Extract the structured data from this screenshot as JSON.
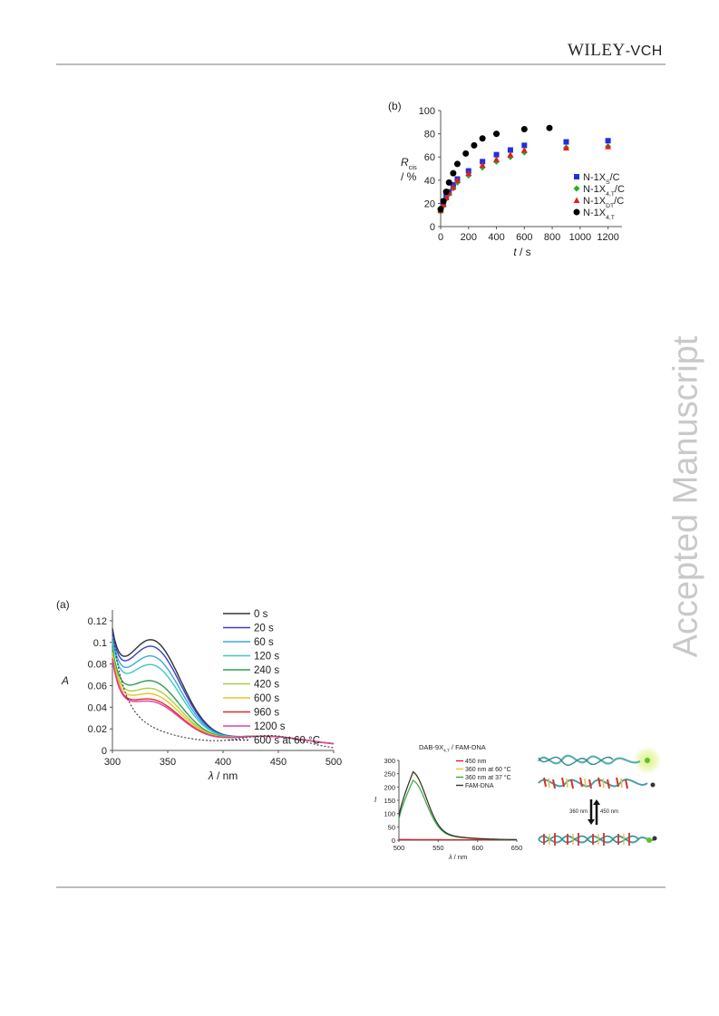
{
  "header": {
    "publisher_main": "WILEY",
    "publisher_suffix": "-VCH"
  },
  "watermark": "Accepted Manuscript",
  "chart_data": [
    {
      "type": "scatter",
      "panel_label": "(b)",
      "ylabel_symbol": "R",
      "ylabel_sub": "cis",
      "ylabel_unit": "/ %",
      "xlabel_symbol": "t",
      "xlabel_unit": " / s",
      "xlim": [
        0,
        1300
      ],
      "ylim": [
        0,
        100
      ],
      "x_ticks": [
        "0",
        "200",
        "400",
        "600",
        "800",
        "1000",
        "1200"
      ],
      "y_ticks": [
        "0",
        "20",
        "40",
        "60",
        "80",
        "100"
      ],
      "legend_position": "right",
      "series": [
        {
          "name": "N-1X",
          "sub": "S",
          "suffix": "/C",
          "marker": "square",
          "color": "#1f2fe0",
          "x": [
            0,
            20,
            40,
            60,
            90,
            120,
            200,
            300,
            400,
            500,
            600,
            900,
            1200
          ],
          "y": [
            14,
            20,
            26,
            30,
            36,
            41,
            48,
            56,
            62,
            66,
            70,
            73,
            74
          ]
        },
        {
          "name": "N-1X",
          "sub": "4,T",
          "suffix": "/C",
          "marker": "diamond",
          "color": "#22b022",
          "x": [
            0,
            20,
            40,
            60,
            90,
            120,
            200,
            300,
            400,
            500,
            600,
            900,
            1200
          ],
          "y": [
            13,
            18,
            24,
            28,
            33,
            38,
            44,
            51,
            56,
            60,
            64,
            68,
            69
          ]
        },
        {
          "name": "N-1X",
          "sub": "DT",
          "suffix": "/C",
          "marker": "triangle",
          "color": "#e02020",
          "x": [
            0,
            20,
            40,
            60,
            90,
            120,
            200,
            300,
            400,
            500,
            600,
            900,
            1200
          ],
          "y": [
            14,
            19,
            25,
            29,
            34,
            40,
            46,
            53,
            58,
            62,
            66,
            68,
            69
          ]
        },
        {
          "name": "N-1X",
          "sub": "4,T",
          "suffix": "",
          "marker": "circle",
          "color": "#000000",
          "x": [
            0,
            20,
            40,
            60,
            90,
            120,
            180,
            240,
            300,
            400,
            600,
            780
          ],
          "y": [
            15,
            22,
            30,
            38,
            46,
            54,
            63,
            70,
            76,
            80,
            84,
            85
          ]
        }
      ]
    },
    {
      "type": "line",
      "panel_label": "(a)",
      "ylabel": "A",
      "xlabel_symbol": "λ",
      "xlabel_unit": " / nm",
      "xlim": [
        300,
        500
      ],
      "ylim": [
        0,
        0.13
      ],
      "x_ticks": [
        "300",
        "350",
        "400",
        "450",
        "500"
      ],
      "y_ticks": [
        "0",
        "0.02",
        "0.04",
        "0.06",
        "0.08",
        "0.1",
        "0.12"
      ],
      "legend_position": "top-right",
      "series": [
        {
          "name": "0 s",
          "color": "#333333",
          "peak": 0.111,
          "trough": 0.071,
          "start": 0.082
        },
        {
          "name": "20 s",
          "color": "#3b3bd6",
          "peak": 0.105,
          "trough": 0.068,
          "start": 0.081
        },
        {
          "name": "60 s",
          "color": "#38a8e0",
          "peak": 0.096,
          "trough": 0.064,
          "start": 0.08
        },
        {
          "name": "120 s",
          "color": "#3cc8c0",
          "peak": 0.088,
          "trough": 0.061,
          "start": 0.079
        },
        {
          "name": "240 s",
          "color": "#2e9e4a",
          "peak": 0.073,
          "trough": 0.057,
          "start": 0.078
        },
        {
          "name": "420 s",
          "color": "#a8d040",
          "peak": 0.066,
          "trough": 0.055,
          "start": 0.077
        },
        {
          "name": "600 s",
          "color": "#f0c020",
          "peak": 0.061,
          "trough": 0.053,
          "start": 0.076
        },
        {
          "name": "960 s",
          "color": "#e02a2a",
          "peak": 0.056,
          "trough": 0.052,
          "start": 0.075
        },
        {
          "name": "1200 s",
          "color": "#e040a0",
          "peak": 0.054,
          "trough": 0.051,
          "start": 0.075
        },
        {
          "name": "600 s at 60 °C",
          "color": "#444444",
          "dashed": true
        }
      ]
    },
    {
      "type": "line",
      "title_main": "DAB-9X",
      "title_sub": "4,T",
      "title_suffix": " / FAM-DNA",
      "ylabel": "I",
      "xlabel_symbol": "λ",
      "xlabel_unit": " / nm",
      "xlim": [
        500,
        650
      ],
      "ylim": [
        0,
        300
      ],
      "x_ticks": [
        "500",
        "550",
        "600",
        "650"
      ],
      "y_ticks": [
        "0",
        "50",
        "100",
        "150",
        "200",
        "250",
        "300"
      ],
      "legend_position": "top-right",
      "series": [
        {
          "name": "450 nm",
          "color": "#e02020",
          "peak": 3
        },
        {
          "name": "360 nm at 60 °C",
          "color": "#f0c020",
          "peak": 255
        },
        {
          "name": "360 nm at 37 °C",
          "color": "#2eaa4a",
          "peak": 225
        },
        {
          "name": "FAM-DNA",
          "color": "#333333",
          "peak": 257
        }
      ]
    }
  ],
  "cartoon": {
    "label_up": "360 nm",
    "label_down": "450 nm"
  }
}
